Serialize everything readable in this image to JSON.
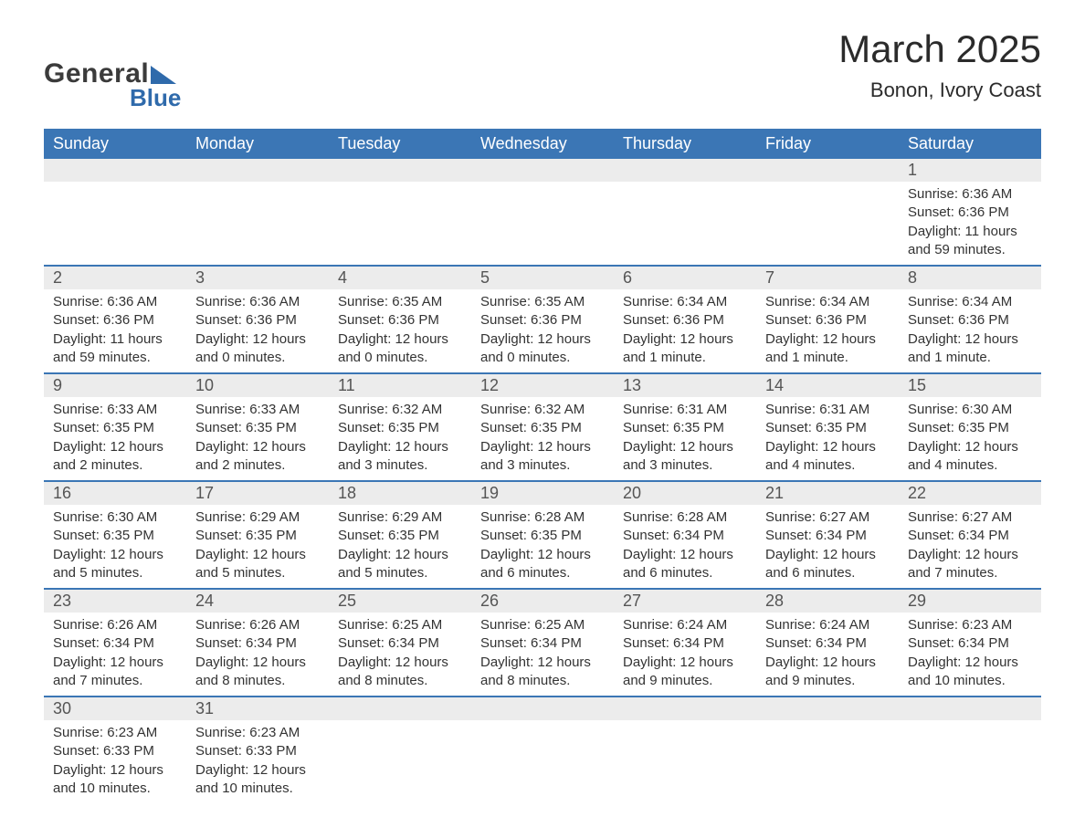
{
  "logo": {
    "line1": "General",
    "line2": "Blue",
    "accent_color": "#2f6aab"
  },
  "title": "March 2025",
  "location": "Bonon, Ivory Coast",
  "colors": {
    "header_bg": "#3b76b5",
    "header_text": "#ffffff",
    "daynum_bg": "#ececec",
    "row_border": "#3b76b5",
    "body_text": "#333333"
  },
  "day_headers": [
    "Sunday",
    "Monday",
    "Tuesday",
    "Wednesday",
    "Thursday",
    "Friday",
    "Saturday"
  ],
  "weeks": [
    [
      null,
      null,
      null,
      null,
      null,
      null,
      {
        "n": "1",
        "sunrise": "Sunrise: 6:36 AM",
        "sunset": "Sunset: 6:36 PM",
        "daylight": "Daylight: 11 hours and 59 minutes."
      }
    ],
    [
      {
        "n": "2",
        "sunrise": "Sunrise: 6:36 AM",
        "sunset": "Sunset: 6:36 PM",
        "daylight": "Daylight: 11 hours and 59 minutes."
      },
      {
        "n": "3",
        "sunrise": "Sunrise: 6:36 AM",
        "sunset": "Sunset: 6:36 PM",
        "daylight": "Daylight: 12 hours and 0 minutes."
      },
      {
        "n": "4",
        "sunrise": "Sunrise: 6:35 AM",
        "sunset": "Sunset: 6:36 PM",
        "daylight": "Daylight: 12 hours and 0 minutes."
      },
      {
        "n": "5",
        "sunrise": "Sunrise: 6:35 AM",
        "sunset": "Sunset: 6:36 PM",
        "daylight": "Daylight: 12 hours and 0 minutes."
      },
      {
        "n": "6",
        "sunrise": "Sunrise: 6:34 AM",
        "sunset": "Sunset: 6:36 PM",
        "daylight": "Daylight: 12 hours and 1 minute."
      },
      {
        "n": "7",
        "sunrise": "Sunrise: 6:34 AM",
        "sunset": "Sunset: 6:36 PM",
        "daylight": "Daylight: 12 hours and 1 minute."
      },
      {
        "n": "8",
        "sunrise": "Sunrise: 6:34 AM",
        "sunset": "Sunset: 6:36 PM",
        "daylight": "Daylight: 12 hours and 1 minute."
      }
    ],
    [
      {
        "n": "9",
        "sunrise": "Sunrise: 6:33 AM",
        "sunset": "Sunset: 6:35 PM",
        "daylight": "Daylight: 12 hours and 2 minutes."
      },
      {
        "n": "10",
        "sunrise": "Sunrise: 6:33 AM",
        "sunset": "Sunset: 6:35 PM",
        "daylight": "Daylight: 12 hours and 2 minutes."
      },
      {
        "n": "11",
        "sunrise": "Sunrise: 6:32 AM",
        "sunset": "Sunset: 6:35 PM",
        "daylight": "Daylight: 12 hours and 3 minutes."
      },
      {
        "n": "12",
        "sunrise": "Sunrise: 6:32 AM",
        "sunset": "Sunset: 6:35 PM",
        "daylight": "Daylight: 12 hours and 3 minutes."
      },
      {
        "n": "13",
        "sunrise": "Sunrise: 6:31 AM",
        "sunset": "Sunset: 6:35 PM",
        "daylight": "Daylight: 12 hours and 3 minutes."
      },
      {
        "n": "14",
        "sunrise": "Sunrise: 6:31 AM",
        "sunset": "Sunset: 6:35 PM",
        "daylight": "Daylight: 12 hours and 4 minutes."
      },
      {
        "n": "15",
        "sunrise": "Sunrise: 6:30 AM",
        "sunset": "Sunset: 6:35 PM",
        "daylight": "Daylight: 12 hours and 4 minutes."
      }
    ],
    [
      {
        "n": "16",
        "sunrise": "Sunrise: 6:30 AM",
        "sunset": "Sunset: 6:35 PM",
        "daylight": "Daylight: 12 hours and 5 minutes."
      },
      {
        "n": "17",
        "sunrise": "Sunrise: 6:29 AM",
        "sunset": "Sunset: 6:35 PM",
        "daylight": "Daylight: 12 hours and 5 minutes."
      },
      {
        "n": "18",
        "sunrise": "Sunrise: 6:29 AM",
        "sunset": "Sunset: 6:35 PM",
        "daylight": "Daylight: 12 hours and 5 minutes."
      },
      {
        "n": "19",
        "sunrise": "Sunrise: 6:28 AM",
        "sunset": "Sunset: 6:35 PM",
        "daylight": "Daylight: 12 hours and 6 minutes."
      },
      {
        "n": "20",
        "sunrise": "Sunrise: 6:28 AM",
        "sunset": "Sunset: 6:34 PM",
        "daylight": "Daylight: 12 hours and 6 minutes."
      },
      {
        "n": "21",
        "sunrise": "Sunrise: 6:27 AM",
        "sunset": "Sunset: 6:34 PM",
        "daylight": "Daylight: 12 hours and 6 minutes."
      },
      {
        "n": "22",
        "sunrise": "Sunrise: 6:27 AM",
        "sunset": "Sunset: 6:34 PM",
        "daylight": "Daylight: 12 hours and 7 minutes."
      }
    ],
    [
      {
        "n": "23",
        "sunrise": "Sunrise: 6:26 AM",
        "sunset": "Sunset: 6:34 PM",
        "daylight": "Daylight: 12 hours and 7 minutes."
      },
      {
        "n": "24",
        "sunrise": "Sunrise: 6:26 AM",
        "sunset": "Sunset: 6:34 PM",
        "daylight": "Daylight: 12 hours and 8 minutes."
      },
      {
        "n": "25",
        "sunrise": "Sunrise: 6:25 AM",
        "sunset": "Sunset: 6:34 PM",
        "daylight": "Daylight: 12 hours and 8 minutes."
      },
      {
        "n": "26",
        "sunrise": "Sunrise: 6:25 AM",
        "sunset": "Sunset: 6:34 PM",
        "daylight": "Daylight: 12 hours and 8 minutes."
      },
      {
        "n": "27",
        "sunrise": "Sunrise: 6:24 AM",
        "sunset": "Sunset: 6:34 PM",
        "daylight": "Daylight: 12 hours and 9 minutes."
      },
      {
        "n": "28",
        "sunrise": "Sunrise: 6:24 AM",
        "sunset": "Sunset: 6:34 PM",
        "daylight": "Daylight: 12 hours and 9 minutes."
      },
      {
        "n": "29",
        "sunrise": "Sunrise: 6:23 AM",
        "sunset": "Sunset: 6:34 PM",
        "daylight": "Daylight: 12 hours and 10 minutes."
      }
    ],
    [
      {
        "n": "30",
        "sunrise": "Sunrise: 6:23 AM",
        "sunset": "Sunset: 6:33 PM",
        "daylight": "Daylight: 12 hours and 10 minutes."
      },
      {
        "n": "31",
        "sunrise": "Sunrise: 6:23 AM",
        "sunset": "Sunset: 6:33 PM",
        "daylight": "Daylight: 12 hours and 10 minutes."
      },
      null,
      null,
      null,
      null,
      null
    ]
  ]
}
